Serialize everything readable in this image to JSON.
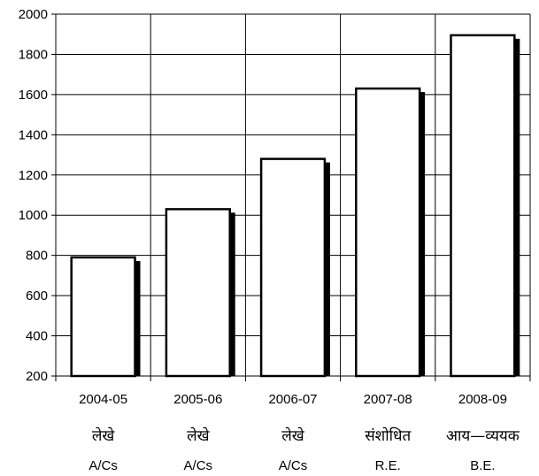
{
  "chart_data": {
    "type": "bar",
    "categories": [
      "2004-05",
      "2005-06",
      "2006-07",
      "2007-08",
      "2008-09"
    ],
    "category_labels_hindi": [
      "लेखे",
      "लेखे",
      "लेखे",
      "संशोधित",
      "आय—व्ययक"
    ],
    "category_labels_english": [
      "A/Cs",
      "A/Cs",
      "A/Cs",
      "R.E.",
      "B.E."
    ],
    "values": [
      790,
      1030,
      1280,
      1630,
      1895
    ],
    "ylim": [
      200,
      2000
    ],
    "yticks": [
      200,
      400,
      600,
      800,
      1000,
      1200,
      1400,
      1600,
      1800,
      2000
    ],
    "grid": true,
    "title": "",
    "xlabel": "",
    "ylabel": ""
  }
}
